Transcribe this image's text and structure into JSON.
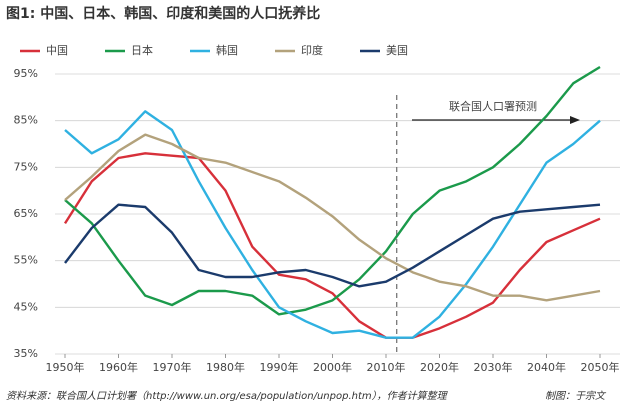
{
  "chart_data": {
    "type": "line",
    "title": "图1: 中国、日本、韩国、印度和美国的人口抚养比",
    "x": [
      1950,
      1955,
      1960,
      1965,
      1970,
      1975,
      1980,
      1985,
      1990,
      1995,
      2000,
      2005,
      2010,
      2015,
      2020,
      2025,
      2030,
      2035,
      2040,
      2045,
      2050
    ],
    "series": [
      {
        "name": "中国",
        "color": "#d7303a",
        "values": [
          63,
          72,
          77,
          78,
          77.5,
          77,
          70,
          58,
          52,
          51,
          48,
          42,
          38.5,
          38.5,
          40.5,
          43,
          46,
          53,
          59,
          61.5,
          64
        ]
      },
      {
        "name": "日本",
        "color": "#1b9a4b",
        "values": [
          68,
          63,
          55,
          47.5,
          45.5,
          48.5,
          48.5,
          47.5,
          43.5,
          44.5,
          46.5,
          51,
          57,
          65,
          70,
          72,
          75,
          80,
          86,
          93,
          96.5
        ]
      },
      {
        "name": "韩国",
        "color": "#2fb1e1",
        "values": [
          83,
          78,
          81,
          87,
          83,
          72,
          62,
          53,
          45,
          42,
          39.5,
          40,
          38.5,
          38.5,
          43,
          50,
          58,
          67,
          76,
          80,
          85
        ]
      },
      {
        "name": "印度",
        "color": "#b3a27c",
        "values": [
          68,
          73,
          78.5,
          82,
          80,
          77,
          76,
          74,
          72,
          68.5,
          64.5,
          59.5,
          55.5,
          52.5,
          50.5,
          49.5,
          47.5,
          47.5,
          46.5,
          47.5,
          48.5
        ]
      },
      {
        "name": "美国",
        "color": "#1b3b6c",
        "values": [
          54.5,
          62,
          67,
          66.5,
          61,
          53,
          51.5,
          51.5,
          52.5,
          53,
          51.5,
          49.5,
          50.5,
          53.5,
          57,
          60.5,
          64,
          65.5,
          66,
          66.5,
          67
        ]
      }
    ],
    "xlim": [
      1950,
      2050
    ],
    "xticks": [
      {
        "value": 1950,
        "label": "1950年"
      },
      {
        "value": 1960,
        "label": "1960年"
      },
      {
        "value": 1970,
        "label": "1970年"
      },
      {
        "value": 1980,
        "label": "1980年"
      },
      {
        "value": 1990,
        "label": "1990年"
      },
      {
        "value": 2000,
        "label": "2000年"
      },
      {
        "value": 2010,
        "label": "2010年"
      },
      {
        "value": 2020,
        "label": "2020年"
      },
      {
        "value": 2030,
        "label": "2030年"
      },
      {
        "value": 2040,
        "label": "2040年"
      },
      {
        "value": 2050,
        "label": "2050年"
      }
    ],
    "ylim": [
      35,
      95
    ],
    "yticks": [
      {
        "value": 35,
        "label": "35%"
      },
      {
        "value": 45,
        "label": "45%"
      },
      {
        "value": 55,
        "label": "55%"
      },
      {
        "value": 65,
        "label": "65%"
      },
      {
        "value": 75,
        "label": "75%"
      },
      {
        "value": 85,
        "label": "85%"
      },
      {
        "value": 95,
        "label": "95%"
      }
    ],
    "grid": true,
    "annotation": {
      "text": "联合国人口署预测",
      "x": 2012
    },
    "source": "资料来源：联合国人口计划署（http://www.un.org/esa/population/unpop.htm），作者计算整理",
    "credit": "制图：于宗文"
  }
}
